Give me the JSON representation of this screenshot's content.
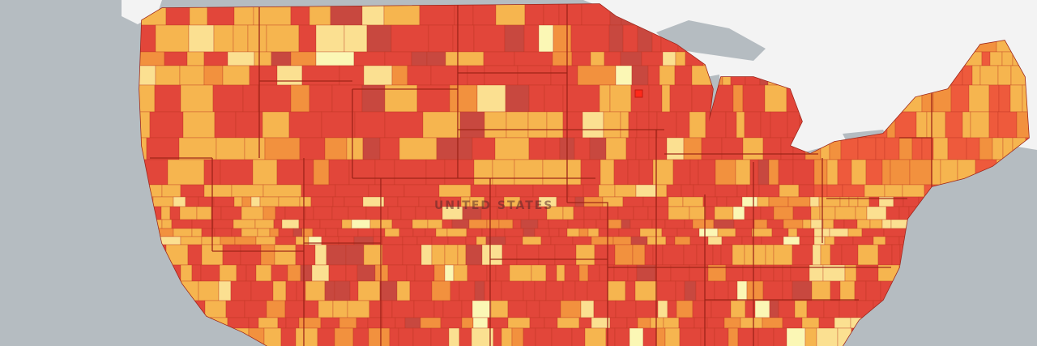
{
  "map": {
    "country_label": "UNITED STATES",
    "colors": {
      "background": "#b5bcc1",
      "land_outside": "#f3f3f3",
      "water": "#b5bcc1",
      "border": "#9c2318",
      "choropleth_scale": [
        "#fbf7b5",
        "#fbe091",
        "#f6b54f",
        "#f2913e",
        "#ee5a3c",
        "#e2463a",
        "#c8483f"
      ]
    },
    "legend": null
  }
}
